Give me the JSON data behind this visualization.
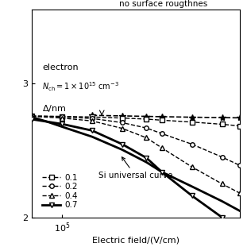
{
  "xlabel": "Electric field/(V/cm)",
  "annotation_nosr": "no surface rougthnes",
  "annotation_univ": "Si universal curve",
  "electron_text": "electron",
  "background_color": "#ffffff",
  "x_universal": [
    50000.0,
    70000.0,
    100000.0,
    200000.0,
    400000.0,
    700000.0,
    1000000.0,
    2000000.0,
    4000000.0,
    6000000.0
  ],
  "y_universal": [
    560,
    520,
    475,
    400,
    320,
    258,
    218,
    170,
    132,
    112
  ],
  "x_nosr": [
    200000.0,
    400000.0,
    700000.0,
    1000000.0,
    2000000.0,
    4000000.0,
    6000000.0
  ],
  "y_nosr": [
    578,
    573,
    568,
    565,
    560,
    556,
    554
  ],
  "x_d01": [
    50000.0,
    100000.0,
    200000.0,
    400000.0,
    700000.0,
    1000000.0,
    2000000.0,
    4000000.0,
    6000000.0
  ],
  "y_d01": [
    572,
    568,
    562,
    552,
    542,
    532,
    515,
    496,
    482
  ],
  "x_d02": [
    50000.0,
    100000.0,
    200000.0,
    400000.0,
    700000.0,
    1000000.0,
    2000000.0,
    4000000.0,
    6000000.0
  ],
  "y_d02": [
    572,
    563,
    548,
    510,
    465,
    422,
    352,
    282,
    245
  ],
  "x_d04": [
    50000.0,
    100000.0,
    200000.0,
    400000.0,
    700000.0,
    1000000.0,
    2000000.0,
    4000000.0,
    6000000.0
  ],
  "y_d04": [
    568,
    552,
    525,
    462,
    393,
    330,
    238,
    178,
    152
  ],
  "x_d07": [
    50000.0,
    100000.0,
    200000.0,
    400000.0,
    700000.0,
    1000000.0,
    2000000.0,
    4000000.0,
    6000000.0
  ],
  "y_d07": [
    540,
    498,
    445,
    352,
    278,
    218,
    145,
    100,
    82
  ]
}
